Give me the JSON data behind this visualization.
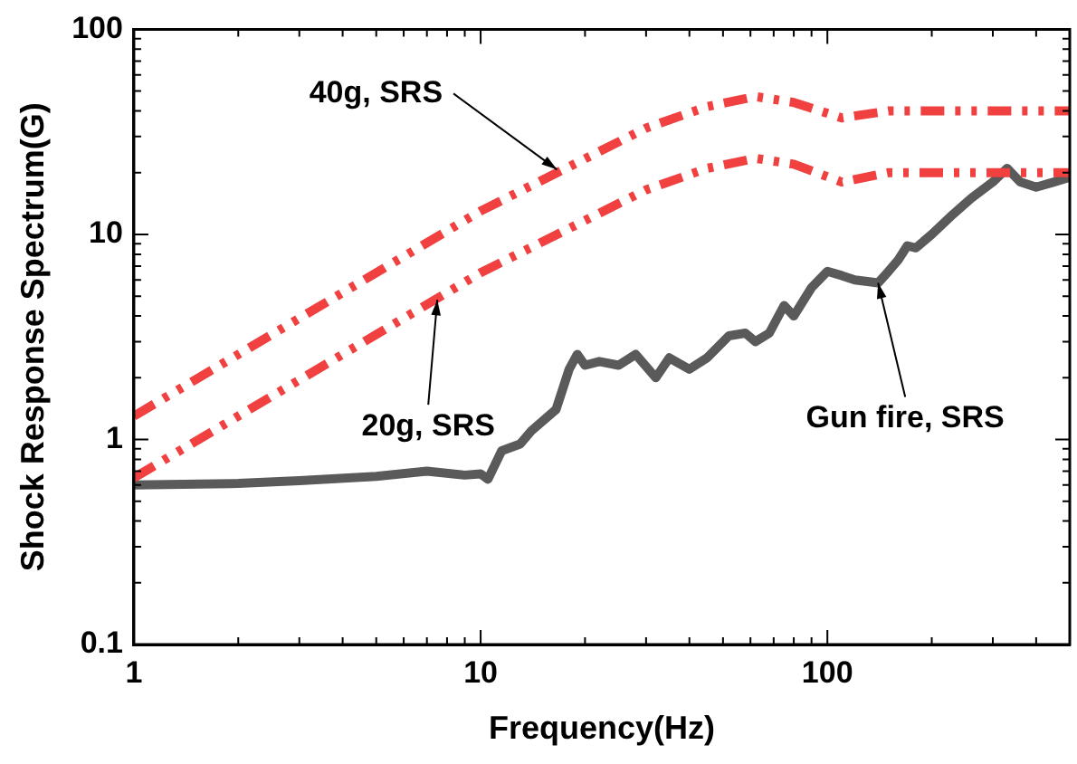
{
  "chart_data": {
    "type": "line",
    "xlabel": "Frequency(Hz)",
    "ylabel": "Shock Response Spectrum(G)",
    "log": "xy",
    "grid": false,
    "legend": false,
    "marker": "none",
    "xlim": [
      1,
      500
    ],
    "ylim": [
      0.1,
      100
    ],
    "xticks": [
      1,
      {
        "value": 2,
        "label": null
      },
      {
        "value": 3,
        "label": null
      },
      {
        "value": 4,
        "label": null
      },
      {
        "value": 5,
        "label": null
      },
      {
        "value": 6,
        "label": null
      },
      {
        "value": 7,
        "label": null
      },
      {
        "value": 8,
        "label": null
      },
      {
        "value": 9,
        "label": null
      },
      10,
      {
        "value": 20,
        "label": null
      },
      {
        "value": 30,
        "label": null
      },
      {
        "value": 40,
        "label": null
      },
      {
        "value": 50,
        "label": null
      },
      {
        "value": 60,
        "label": null
      },
      {
        "value": 70,
        "label": null
      },
      {
        "value": 80,
        "label": null
      },
      {
        "value": 90,
        "label": null
      },
      100,
      {
        "value": 200,
        "label": null
      },
      {
        "value": 300,
        "label": null
      },
      {
        "value": 400,
        "label": null
      }
    ],
    "yticks": [
      0.1,
      {
        "value": 0.2,
        "label": null
      },
      {
        "value": 0.3,
        "label": null
      },
      {
        "value": 0.4,
        "label": null
      },
      {
        "value": 0.5,
        "label": null
      },
      {
        "value": 0.6,
        "label": null
      },
      {
        "value": 0.7,
        "label": null
      },
      {
        "value": 0.8,
        "label": null
      },
      {
        "value": 0.9,
        "label": null
      },
      1,
      {
        "value": 2,
        "label": null
      },
      {
        "value": 3,
        "label": null
      },
      {
        "value": 4,
        "label": null
      },
      {
        "value": 5,
        "label": null
      },
      {
        "value": 6,
        "label": null
      },
      {
        "value": 7,
        "label": null
      },
      {
        "value": 8,
        "label": null
      },
      {
        "value": 9,
        "label": null
      },
      10,
      {
        "value": 20,
        "label": null
      },
      {
        "value": 30,
        "label": null
      },
      {
        "value": 40,
        "label": null
      },
      {
        "value": 50,
        "label": null
      },
      {
        "value": 60,
        "label": null
      },
      {
        "value": 70,
        "label": null
      },
      {
        "value": 80,
        "label": null
      },
      {
        "value": 90,
        "label": null
      },
      100
    ],
    "series": [
      {
        "color": "#f04040",
        "line_style": "dashed",
        "x": [
          1,
          10,
          30,
          45,
          62,
          80,
          110,
          150,
          200,
          500
        ],
        "values": [
          1.3,
          13,
          33,
          42,
          47,
          44,
          37,
          40,
          40,
          40
        ]
      },
      {
        "color": "#f04040",
        "line_style": "dashed",
        "x": [
          1,
          10,
          30,
          45,
          62,
          80,
          110,
          150,
          200,
          500
        ],
        "values": [
          0.65,
          6.5,
          16.5,
          21,
          23.5,
          22,
          18,
          20,
          20,
          20
        ]
      },
      {
        "color": "#5a5a5a",
        "line_style": "solid",
        "x": [
          1,
          2,
          3,
          5,
          7,
          9,
          10,
          10.5,
          11.5,
          13,
          14,
          16.5,
          18,
          19,
          20,
          22,
          25,
          28,
          32,
          35,
          40,
          45,
          52,
          58,
          62,
          68,
          75,
          80,
          90,
          100,
          110,
          120,
          140,
          150,
          160,
          170,
          180,
          200,
          230,
          260,
          300,
          330,
          360,
          400,
          450,
          500
        ],
        "values": [
          0.6,
          0.61,
          0.63,
          0.66,
          0.7,
          0.67,
          0.68,
          0.64,
          0.88,
          0.95,
          1.1,
          1.4,
          2.2,
          2.6,
          2.3,
          2.4,
          2.3,
          2.6,
          2.0,
          2.5,
          2.2,
          2.5,
          3.2,
          3.3,
          3.0,
          3.3,
          4.5,
          4.0,
          5.5,
          6.6,
          6.3,
          6.0,
          5.8,
          6.6,
          7.5,
          8.8,
          8.6,
          10,
          12.5,
          15,
          18,
          21,
          18,
          17,
          18,
          19
        ]
      }
    ],
    "annotations": [
      {
        "text": "40g, SRS",
        "x": 16.6,
        "y": 20.7
      },
      {
        "text": "20g, SRS",
        "x": 7.5,
        "y": 4.8
      },
      {
        "text": "Gun fire, SRS",
        "x": 140,
        "y": 5.8
      }
    ]
  }
}
